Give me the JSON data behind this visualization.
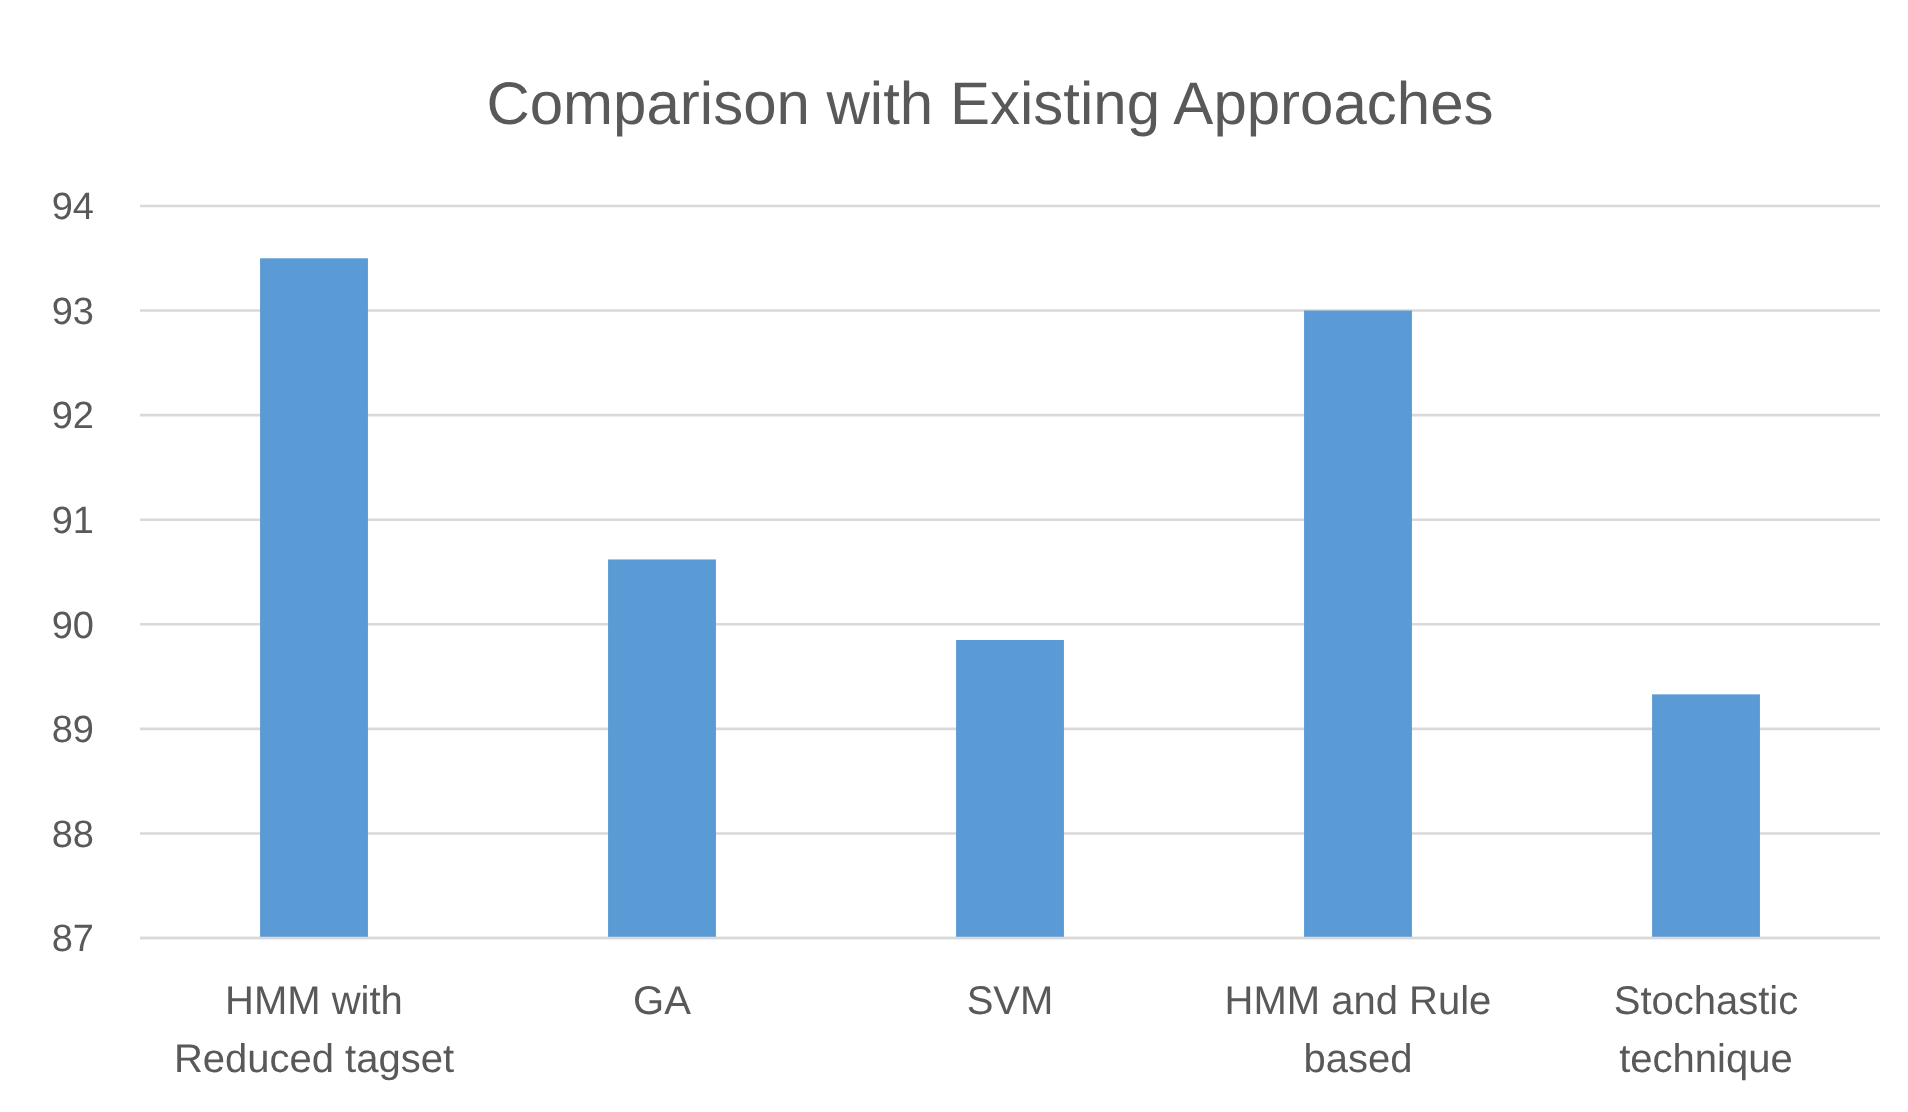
{
  "chart_data": {
    "type": "bar",
    "title": "Comparison with Existing Approaches",
    "categories": [
      "HMM with Reduced tagset",
      "GA",
      "SVM",
      "HMM and Rule based",
      "Stochastic technique"
    ],
    "values": [
      93.5,
      90.62,
      89.85,
      93,
      89.33
    ],
    "color": "#5b9bd5",
    "ylim": [
      87,
      94
    ],
    "yticks": [
      87,
      88,
      89,
      90,
      91,
      92,
      93,
      94
    ],
    "grid": "y"
  }
}
